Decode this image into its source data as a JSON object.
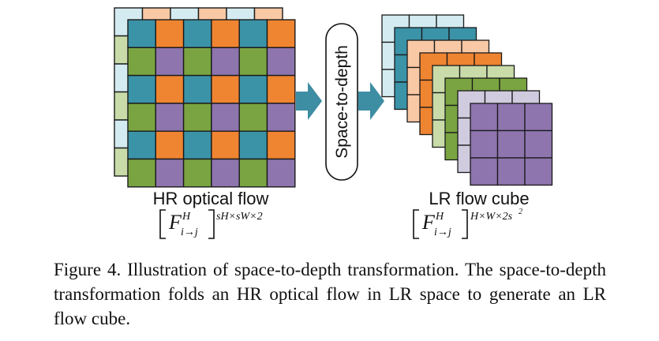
{
  "colors": {
    "light_blue": "#d4ecf1",
    "peach": "#f9c8a4",
    "light_green": "#c8dba8",
    "lavender": "#d1cbe0",
    "teal": "#3b93a8",
    "orange": "#ef8431",
    "green": "#7aa441",
    "purple": "#8e75ae",
    "arrow": "#3d8da3",
    "grid_line": "#1a1a1a"
  },
  "left": {
    "label": "HR optical flow",
    "formula_base": "F",
    "formula_sup": "H",
    "formula_sub": "i→j",
    "formula_dims": "sH×sW×2"
  },
  "middle": {
    "label": "Space-to-depth"
  },
  "right": {
    "label": "LR flow cube",
    "formula_base": "F",
    "formula_sup": "H",
    "formula_sub": "i→j",
    "formula_dims": "H×W×2s",
    "formula_dims_exp": "2"
  },
  "caption": {
    "text": "Figure 4. Illustration of space-to-depth transformation. The space-to-depth transformation folds an HR optical flow in LR space to generate an LR flow cube."
  }
}
